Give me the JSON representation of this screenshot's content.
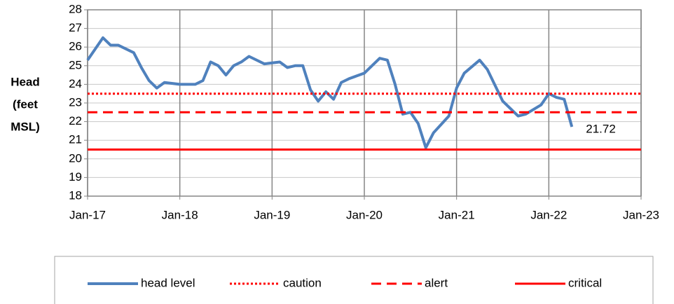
{
  "chart_data": {
    "type": "line",
    "ylabel": [
      "Head",
      "(feet",
      "MSL)"
    ],
    "xlim": [
      "2017-01",
      "2023-01"
    ],
    "xticks": [
      {
        "value": "2017-01",
        "label": "Jan-17"
      },
      {
        "value": "2018-01",
        "label": "Jan-18"
      },
      {
        "value": "2019-01",
        "label": "Jan-19"
      },
      {
        "value": "2020-01",
        "label": "Jan-20"
      },
      {
        "value": "2021-01",
        "label": "Jan-21"
      },
      {
        "value": "2022-01",
        "label": "Jan-22"
      },
      {
        "value": "2023-01",
        "label": "Jan-23"
      }
    ],
    "ylim": [
      18,
      28
    ],
    "yticks": [
      18,
      19,
      20,
      21,
      22,
      23,
      24,
      25,
      26,
      27,
      28
    ],
    "grid": true,
    "legend": "bottom",
    "series": [
      {
        "name": "head level",
        "color": "#4f81bd",
        "style": "solid",
        "x": [
          "2017-01",
          "2017-03",
          "2017-04",
          "2017-05",
          "2017-07",
          "2017-08",
          "2017-09",
          "2017-10",
          "2017-11",
          "2018-01",
          "2018-03",
          "2018-04",
          "2018-05",
          "2018-06",
          "2018-07",
          "2018-08",
          "2018-09",
          "2018-10",
          "2018-12",
          "2019-02",
          "2019-03",
          "2019-04",
          "2019-05",
          "2019-06",
          "2019-07",
          "2019-08",
          "2019-09",
          "2019-10",
          "2019-11",
          "2020-01",
          "2020-02",
          "2020-03",
          "2020-04",
          "2020-05",
          "2020-06",
          "2020-07",
          "2020-08",
          "2020-09",
          "2020-10",
          "2020-12",
          "2021-01",
          "2021-02",
          "2021-04",
          "2021-05",
          "2021-07",
          "2021-09",
          "2021-10",
          "2021-12",
          "2022-01",
          "2022-02",
          "2022-03",
          "2022-04"
        ],
        "values": [
          25.3,
          26.5,
          26.1,
          26.1,
          25.7,
          24.9,
          24.2,
          23.8,
          24.1,
          24.0,
          24.0,
          24.2,
          25.2,
          25.0,
          24.5,
          25.0,
          25.2,
          25.5,
          25.1,
          25.2,
          24.9,
          25.0,
          25.0,
          23.7,
          23.1,
          23.6,
          23.2,
          24.1,
          24.3,
          24.6,
          25.0,
          25.4,
          25.3,
          24.0,
          22.4,
          22.5,
          21.9,
          20.6,
          21.4,
          22.3,
          23.8,
          24.6,
          25.3,
          24.8,
          23.1,
          22.3,
          22.4,
          22.9,
          23.5,
          23.3,
          23.2,
          21.72
        ]
      },
      {
        "name": "caution",
        "color": "#ff0000",
        "style": "dotted",
        "x": [
          "2017-01",
          "2023-01"
        ],
        "values": [
          23.5,
          23.5
        ]
      },
      {
        "name": "alert",
        "color": "#ff0000",
        "style": "dashed",
        "x": [
          "2017-01",
          "2023-01"
        ],
        "values": [
          22.5,
          22.5
        ]
      },
      {
        "name": "critical",
        "color": "#ff0000",
        "style": "solid",
        "x": [
          "2017-01",
          "2023-01"
        ],
        "values": [
          20.5,
          20.5
        ]
      }
    ],
    "annotation": {
      "text": "21.72",
      "series": 0,
      "point": 51
    }
  }
}
